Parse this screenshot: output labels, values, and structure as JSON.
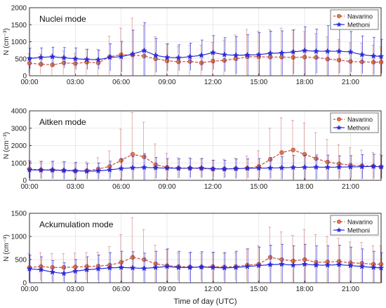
{
  "chart_data": [
    {
      "type": "line",
      "title": "Nuclei mode",
      "xlabel": "",
      "ylabel": "N (cm⁻³)",
      "xlim": [
        0,
        23
      ],
      "ylim": [
        0,
        2000
      ],
      "yticks": [
        0,
        500,
        1000,
        1500,
        2000
      ],
      "xtick_labels": [
        "00:00",
        "03:00",
        "06:00",
        "09:00",
        "12:00",
        "15:00",
        "18:00",
        "21:00"
      ],
      "legend_position": "top-right",
      "x": [
        0,
        0.75,
        1.5,
        2.25,
        3,
        3.75,
        4.5,
        5.25,
        6,
        6.75,
        7.5,
        8.25,
        9,
        9.75,
        10.5,
        11.25,
        12,
        12.75,
        13.5,
        14.25,
        15,
        15.75,
        16.5,
        17.25,
        18,
        18.75,
        19.5,
        20.25,
        21,
        21.75,
        22.5,
        23
      ],
      "series": [
        {
          "name": "Navarino",
          "color": "#c0504d",
          "marker": "circle",
          "values": [
            370,
            340,
            320,
            380,
            360,
            400,
            380,
            560,
            620,
            610,
            580,
            500,
            440,
            410,
            420,
            380,
            430,
            450,
            500,
            560,
            560,
            550,
            550,
            540,
            550,
            540,
            490,
            460,
            420,
            410,
            400,
            400
          ],
          "errors": [
            280,
            300,
            320,
            350,
            300,
            380,
            400,
            600,
            780,
            1080,
            900,
            650,
            500,
            450,
            480,
            520,
            550,
            600,
            700,
            800,
            750,
            800,
            850,
            800,
            750,
            700,
            650,
            600,
            550,
            550,
            500,
            450
          ]
        },
        {
          "name": "Methoni",
          "color": "#2b2bd6",
          "marker": "star",
          "values": [
            510,
            540,
            560,
            530,
            500,
            480,
            470,
            540,
            560,
            640,
            740,
            600,
            540,
            530,
            560,
            600,
            680,
            620,
            600,
            610,
            620,
            660,
            670,
            700,
            740,
            720,
            720,
            720,
            700,
            620,
            580,
            570
          ],
          "errors": [
            300,
            280,
            280,
            300,
            320,
            300,
            280,
            400,
            450,
            700,
            820,
            500,
            400,
            380,
            400,
            450,
            500,
            500,
            550,
            600,
            650,
            650,
            650,
            650,
            700,
            650,
            750,
            650,
            600,
            550,
            550,
            500
          ]
        }
      ]
    },
    {
      "type": "line",
      "title": "Aitken mode",
      "xlabel": "",
      "ylabel": "N (cm⁻³)",
      "xlim": [
        0,
        23
      ],
      "ylim": [
        0,
        4000
      ],
      "yticks": [
        0,
        1000,
        2000,
        3000,
        4000
      ],
      "xtick_labels": [
        "00:00",
        "03:00",
        "06:00",
        "09:00",
        "12:00",
        "15:00",
        "18:00",
        "21:00"
      ],
      "legend_position": "top-right",
      "x": [
        0,
        0.75,
        1.5,
        2.25,
        3,
        3.75,
        4.5,
        5.25,
        6,
        6.75,
        7.5,
        8.25,
        9,
        9.75,
        10.5,
        11.25,
        12,
        12.75,
        13.5,
        14.25,
        15,
        15.75,
        16.5,
        17.25,
        18,
        18.75,
        19.5,
        20.25,
        21,
        21.75,
        22.5,
        23
      ],
      "series": [
        {
          "name": "Navarino",
          "color": "#c0504d",
          "marker": "circle",
          "values": [
            650,
            600,
            580,
            560,
            520,
            560,
            650,
            800,
            1150,
            1500,
            1350,
            900,
            750,
            700,
            700,
            680,
            650,
            660,
            680,
            700,
            800,
            1200,
            1600,
            1750,
            1500,
            1250,
            1050,
            950,
            870,
            840,
            810,
            780
          ],
          "errors": [
            500,
            500,
            500,
            500,
            450,
            500,
            650,
            900,
            1800,
            2400,
            2000,
            1200,
            800,
            600,
            600,
            550,
            500,
            550,
            600,
            700,
            900,
            1800,
            2000,
            1700,
            1800,
            1500,
            1300,
            1100,
            1000,
            900,
            800,
            700
          ]
        },
        {
          "name": "Methoni",
          "color": "#2b2bd6",
          "marker": "star",
          "values": [
            600,
            590,
            600,
            570,
            560,
            520,
            540,
            600,
            680,
            720,
            740,
            720,
            700,
            690,
            700,
            710,
            660,
            650,
            670,
            690,
            700,
            710,
            720,
            740,
            750,
            760,
            750,
            760,
            770,
            780,
            800,
            770
          ],
          "errors": [
            500,
            500,
            500,
            500,
            480,
            450,
            460,
            500,
            550,
            650,
            800,
            600,
            550,
            550,
            550,
            550,
            500,
            500,
            550,
            550,
            550,
            600,
            650,
            700,
            700,
            700,
            700,
            650,
            650,
            700,
            700,
            650
          ]
        }
      ]
    },
    {
      "type": "line",
      "title": "Ackumulation mode",
      "xlabel": "Time of day (UTC)",
      "ylabel": "N (cm⁻³)",
      "xlim": [
        0,
        23
      ],
      "ylim": [
        0,
        1500
      ],
      "yticks": [
        0,
        500,
        1000,
        1500
      ],
      "xtick_labels": [
        "00:00",
        "03:00",
        "06:00",
        "09:00",
        "12:00",
        "15:00",
        "18:00",
        "21:00"
      ],
      "legend_position": "top-right",
      "x": [
        0,
        0.75,
        1.5,
        2.25,
        3,
        3.75,
        4.5,
        5.25,
        6,
        6.75,
        7.5,
        8.25,
        9,
        9.75,
        10.5,
        11.25,
        12,
        12.75,
        13.5,
        14.25,
        15,
        15.75,
        16.5,
        17.25,
        18,
        18.75,
        19.5,
        20.25,
        21,
        21.75,
        22.5,
        23
      ],
      "series": [
        {
          "name": "Navarino",
          "color": "#c0504d",
          "marker": "circle",
          "values": [
            330,
            350,
            330,
            330,
            340,
            350,
            360,
            380,
            440,
            550,
            500,
            410,
            370,
            350,
            340,
            340,
            350,
            340,
            350,
            380,
            400,
            550,
            500,
            470,
            500,
            440,
            450,
            460,
            430,
            420,
            400,
            400
          ],
          "errors": [
            300,
            300,
            300,
            300,
            300,
            300,
            300,
            400,
            600,
            850,
            650,
            400,
            350,
            300,
            300,
            300,
            300,
            300,
            300,
            350,
            400,
            650,
            600,
            550,
            650,
            600,
            550,
            500,
            450,
            450,
            400,
            400
          ]
        },
        {
          "name": "Methoni",
          "color": "#2b2bd6",
          "marker": "star",
          "values": [
            300,
            280,
            230,
            200,
            250,
            280,
            300,
            320,
            330,
            320,
            310,
            330,
            350,
            330,
            330,
            340,
            330,
            320,
            330,
            350,
            370,
            390,
            400,
            380,
            400,
            380,
            380,
            390,
            370,
            350,
            330,
            320
          ],
          "errors": [
            300,
            280,
            250,
            230,
            250,
            280,
            300,
            330,
            350,
            350,
            330,
            350,
            380,
            350,
            330,
            330,
            330,
            330,
            350,
            380,
            400,
            420,
            430,
            420,
            430,
            420,
            420,
            420,
            400,
            380,
            350,
            330
          ]
        }
      ]
    }
  ]
}
